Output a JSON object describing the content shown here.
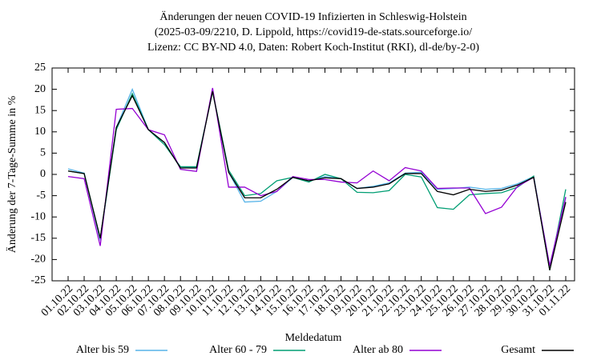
{
  "chart_data": {
    "type": "line",
    "title": [
      "Änderungen der neuen COVID-19 Infizierten in Schleswig-Holstein",
      "(2025-03-09/2210, D. Lippold, https://covid19-de-stats.sourceforge.io/",
      "Lizenz: CC BY-ND 4.0, Daten: Robert Koch-Institut (RKI), dl-de/by-2-0)"
    ],
    "x_label": "Meldedatum",
    "y_label": "Änderung der 7-Tage-Summe in %",
    "categories": [
      "01.10.22",
      "02.10.22",
      "03.10.22",
      "04.10.22",
      "05.10.22",
      "06.10.22",
      "07.10.22",
      "08.10.22",
      "09.10.22",
      "10.10.22",
      "11.10.22",
      "12.10.22",
      "13.10.22",
      "14.10.22",
      "15.10.22",
      "16.10.22",
      "17.10.22",
      "18.10.22",
      "19.10.22",
      "20.10.22",
      "21.10.22",
      "22.10.22",
      "23.10.22",
      "24.10.22",
      "25.10.22",
      "26.10.22",
      "27.10.22",
      "28.10.22",
      "29.10.22",
      "30.10.22",
      "31.10.22",
      "01.11.22"
    ],
    "series": [
      {
        "name": "Alter bis 59",
        "color": "#56b4e9",
        "values": [
          1.3,
          0.3,
          -15.5,
          11,
          20,
          10.5,
          7.5,
          1.5,
          1.7,
          19.5,
          0.5,
          -6.5,
          -6.3,
          -4,
          -0.7,
          -1.5,
          -0.5,
          -1,
          -3.3,
          -2.8,
          -2,
          0.3,
          0.5,
          -3.5,
          -3.3,
          -3,
          -3.5,
          -3.3,
          -2.2,
          -0.5,
          -21.5,
          -5.5
        ]
      },
      {
        "name": "Alter 60 - 79",
        "color": "#009e73",
        "values": [
          0.8,
          0.2,
          -15,
          10.5,
          19,
          10.5,
          7,
          1.8,
          1.8,
          19.5,
          1,
          -5,
          -4.5,
          -1.5,
          -0.7,
          -1.8,
          0,
          -1,
          -4.2,
          -4.3,
          -3.8,
          0,
          -0.6,
          -7.8,
          -8.2,
          -4.8,
          -4.5,
          -4.3,
          -3,
          -0.4,
          -22.5,
          -3.5
        ]
      },
      {
        "name": "Alter ab 80",
        "color": "#9400d3",
        "values": [
          -0.5,
          -1,
          -16.8,
          15.3,
          15.5,
          10.5,
          9.3,
          1.2,
          0.7,
          20.3,
          -3,
          -3,
          -5,
          -4,
          -0.5,
          -1.2,
          -1.2,
          -1.8,
          -2,
          0.8,
          -1.5,
          1.6,
          0.8,
          -3.3,
          -3.2,
          -3.2,
          -9.2,
          -7.7,
          -2.8,
          -0.7,
          -21.5,
          -5.3
        ]
      },
      {
        "name": "Gesamt",
        "color": "#000000",
        "values": [
          0.8,
          0.2,
          -15,
          11,
          18.5,
          10.5,
          7.5,
          1.5,
          1.5,
          19.5,
          0.5,
          -5.5,
          -5.5,
          -3.5,
          -0.7,
          -1.5,
          -0.8,
          -1,
          -3.3,
          -3,
          -2.2,
          0.2,
          0.2,
          -4,
          -4.8,
          -3.5,
          -4,
          -3.7,
          -2.5,
          -0.7,
          -22.5,
          -6.5
        ]
      }
    ],
    "ylim": [
      -25,
      25
    ],
    "yticks": [
      -25,
      -20,
      -15,
      -10,
      -5,
      0,
      5,
      10,
      15,
      20,
      25
    ],
    "grid": false,
    "legend": "bottom"
  }
}
